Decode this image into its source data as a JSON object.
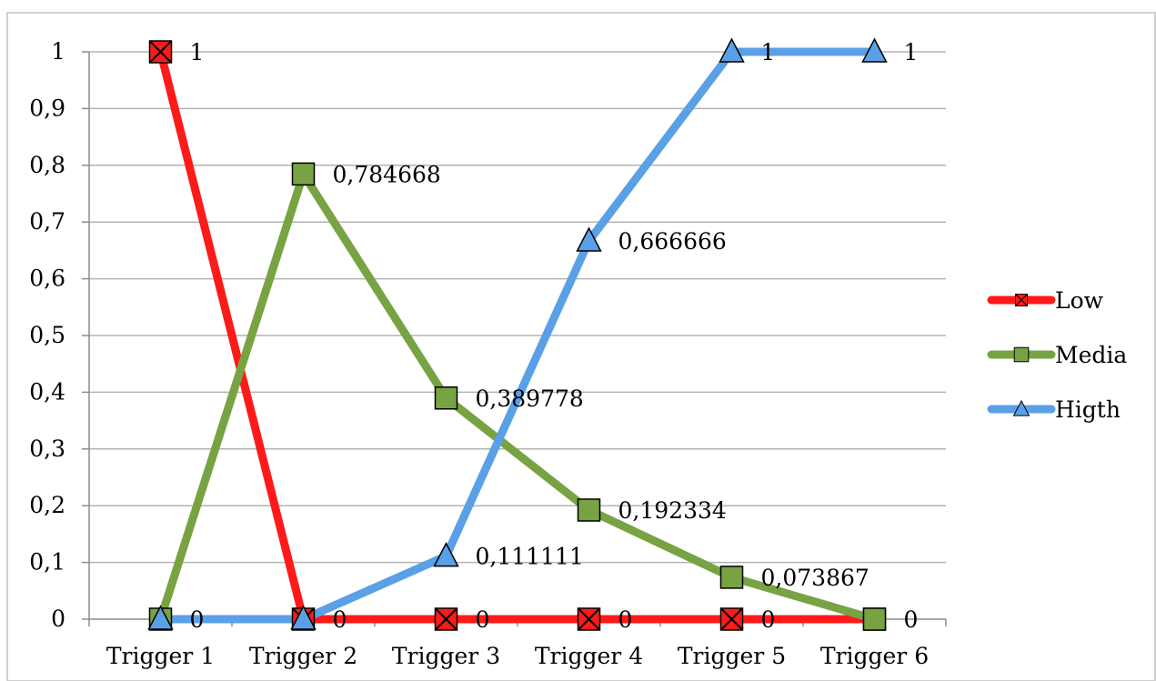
{
  "chart_data": {
    "type": "line",
    "categories": [
      "Trigger 1",
      "Trigger 2",
      "Trigger 3",
      "Trigger 4",
      "Trigger 5",
      "Trigger 6"
    ],
    "ylim": [
      0,
      1
    ],
    "yticks": [
      "0",
      "0,1",
      "0,2",
      "0,3",
      "0,4",
      "0,5",
      "0,6",
      "0,7",
      "0,8",
      "0,9",
      "1"
    ],
    "grid": true,
    "legend_position": "right",
    "series": [
      {
        "name": "Low",
        "values": [
          1,
          0,
          0,
          0,
          0,
          0
        ],
        "labels": [
          "1",
          "",
          "0",
          "0",
          "0",
          ""
        ],
        "color": "#ff1a1a",
        "marker": "x-box"
      },
      {
        "name": "Media",
        "values": [
          0,
          0.784668,
          0.389778,
          0.192334,
          0.073867,
          0
        ],
        "labels": [
          "",
          "0,784668",
          "0,389778",
          "0,192334",
          "0,073867",
          "0"
        ],
        "color": "#77a343",
        "marker": "square"
      },
      {
        "name": "Higth",
        "values": [
          0,
          0,
          0.111111,
          0.666666,
          1,
          1
        ],
        "labels": [
          "0",
          "0",
          "0,111111",
          "0,666666",
          "1",
          "1"
        ],
        "color": "#5aa0e6",
        "marker": "triangle"
      }
    ]
  }
}
